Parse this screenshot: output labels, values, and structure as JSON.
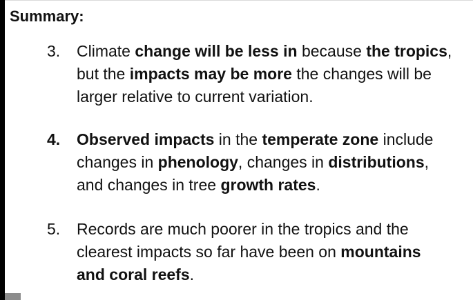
{
  "title": "Summary:",
  "items": [
    {
      "number": "3.",
      "number_bold": false,
      "lines": [
        [
          {
            "t": "Climate ",
            "b": false
          },
          {
            "t": "change will be less in",
            "b": true
          },
          {
            "t": " because ",
            "b": false
          },
          {
            "t": "the tropics",
            "b": true
          },
          {
            "t": ",",
            "b": false
          }
        ],
        [
          {
            "t": "but the ",
            "b": false
          },
          {
            "t": "impacts may be more",
            "b": true
          },
          {
            "t": " the changes will be",
            "b": false
          }
        ],
        [
          {
            "t": "larger relative to current variation.",
            "b": false
          }
        ]
      ]
    },
    {
      "number": "4.",
      "number_bold": true,
      "lines": [
        [
          {
            "t": "Observed impacts",
            "b": true
          },
          {
            "t": " in the ",
            "b": false
          },
          {
            "t": "temperate zone",
            "b": true
          },
          {
            "t": " include",
            "b": false
          }
        ],
        [
          {
            "t": "changes in ",
            "b": false
          },
          {
            "t": "phenology",
            "b": true
          },
          {
            "t": ", changes in ",
            "b": false
          },
          {
            "t": "distributions",
            "b": true
          },
          {
            "t": ",",
            "b": false
          }
        ],
        [
          {
            "t": "and changes in tree ",
            "b": false
          },
          {
            "t": "growth rates",
            "b": true
          },
          {
            "t": ".",
            "b": false
          }
        ]
      ]
    },
    {
      "number": "5.",
      "number_bold": false,
      "lines": [
        [
          {
            "t": "Records are much poorer in the tropics and the",
            "b": false
          }
        ],
        [
          {
            "t": "clearest impacts so far have been on ",
            "b": false
          },
          {
            "t": "mountains",
            "b": true
          }
        ],
        [
          {
            "t": "and coral reefs",
            "b": true
          },
          {
            "t": ".",
            "b": false
          }
        ]
      ]
    }
  ]
}
